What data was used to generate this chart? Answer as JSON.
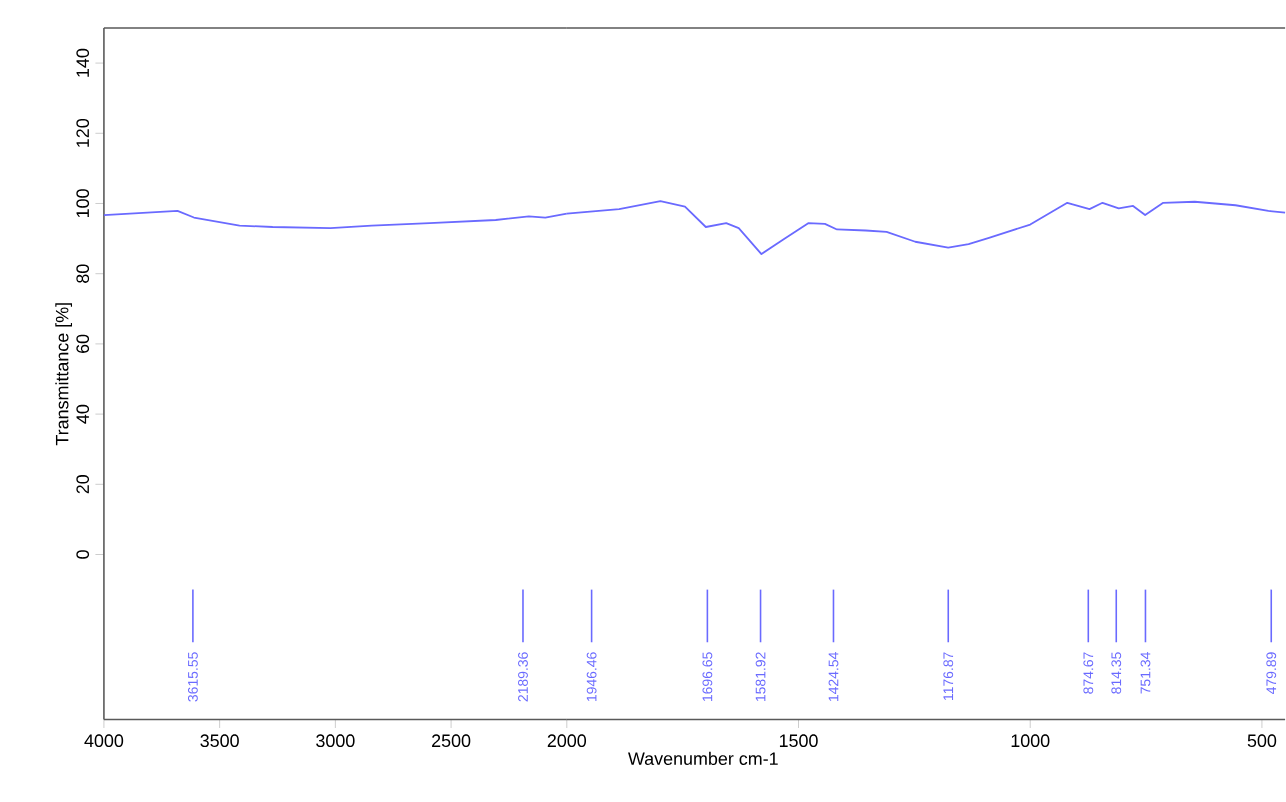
{
  "chart_data": [
    {
      "type": "line",
      "ylabel": "Transmittance [%]",
      "xlim": [
        4000,
        2000
      ],
      "ylim": [
        -47,
        150
      ],
      "xticks": [
        4000,
        3500,
        3000,
        2500,
        2000
      ],
      "yticks": [
        0,
        20,
        40,
        60,
        80,
        100,
        120,
        140
      ],
      "line_style": "solid",
      "series": [
        {
          "color": "#6a6aff",
          "x": [
            4000,
            3682,
            3611,
            3414,
            3271,
            3021,
            2843,
            2593,
            2307,
            2164,
            2093,
            2000
          ],
          "values": [
            96.7,
            97.9,
            96.0,
            93.7,
            93.3,
            93.0,
            93.7,
            94.4,
            95.3,
            96.3,
            96.0,
            97.1
          ]
        }
      ],
      "ref_lines": [
        {
          "axis": "x",
          "value": 3615.55,
          "label": "3615.55",
          "color": "#6a6aff"
        },
        {
          "axis": "x",
          "value": 2189.36,
          "label": "2189.36",
          "color": "#6a6aff"
        }
      ]
    },
    {
      "type": "line",
      "xlabel": "Wavenumber cm-1",
      "xlim": [
        2000,
        450
      ],
      "ylim": [
        -47,
        150
      ],
      "xticks": [
        1500,
        1000,
        500
      ],
      "yticks": [
        0,
        20,
        40,
        60,
        80,
        100,
        120,
        140
      ],
      "tick_labels": "x",
      "line_style": "solid",
      "series": [
        {
          "color": "#6a6aff",
          "x": [
            2000,
            1975,
            1887,
            1798,
            1745,
            1700,
            1656,
            1629,
            1580,
            1532,
            1479,
            1443,
            1417,
            1355,
            1310,
            1248,
            1177,
            1133,
            1089,
            1000,
            920,
            872,
            844,
            809,
            778,
            752,
            713,
            645,
            557,
            486,
            450
          ],
          "values": [
            97.1,
            97.4,
            98.4,
            100.7,
            99.1,
            93.3,
            94.4,
            93.0,
            85.6,
            89.8,
            94.4,
            94.2,
            92.6,
            92.3,
            91.9,
            89.1,
            87.4,
            88.4,
            90.2,
            94.0,
            100.2,
            98.4,
            100.2,
            98.6,
            99.3,
            96.7,
            100.2,
            100.5,
            99.5,
            97.9,
            97.4
          ]
        }
      ],
      "ref_lines": [
        {
          "axis": "x",
          "value": 1946.46,
          "label": "1946.46",
          "color": "#6a6aff"
        },
        {
          "axis": "x",
          "value": 1696.65,
          "label": "1696.65",
          "color": "#6a6aff"
        },
        {
          "axis": "x",
          "value": 1581.92,
          "label": "1581.92",
          "color": "#6a6aff"
        },
        {
          "axis": "x",
          "value": 1424.54,
          "label": "1424.54",
          "color": "#6a6aff"
        },
        {
          "axis": "x",
          "value": 1176.87,
          "label": "1176.87",
          "color": "#6a6aff"
        },
        {
          "axis": "x",
          "value": 874.67,
          "label": "874.67",
          "color": "#6a6aff"
        },
        {
          "axis": "x",
          "value": 814.35,
          "label": "814.35",
          "color": "#6a6aff"
        },
        {
          "axis": "x",
          "value": 751.34,
          "label": "751.34",
          "color": "#6a6aff"
        },
        {
          "axis": "x",
          "value": 479.89,
          "label": "479.89",
          "color": "#6a6aff"
        }
      ]
    }
  ]
}
